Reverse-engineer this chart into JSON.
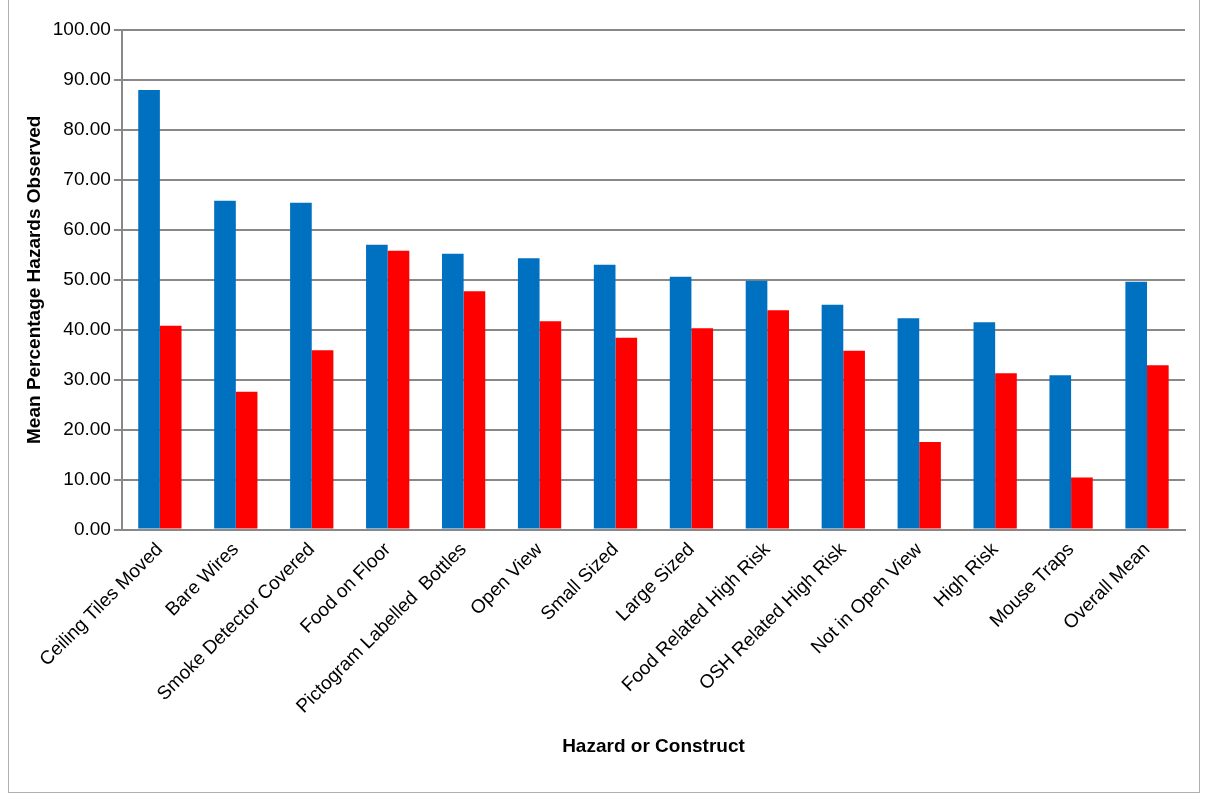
{
  "chart_data": {
    "type": "bar",
    "xlabel": "Hazard or Construct",
    "ylabel": "Mean Percentage Hazards Observed",
    "categories": [
      "Ceiling Tiles Moved",
      "Bare Wires",
      "Smoke Detector Covered",
      "Food on Floor",
      "Pictogram Labelled  Bottles",
      "Open View",
      "Small Sized",
      "Large Sized",
      "Food Related High Risk",
      "OSH Related High Risk",
      "Not in Open View",
      "High Risk",
      "Mouse Traps",
      "Overall Mean"
    ],
    "series": [
      {
        "color": "#0070c0",
        "values": [
          88.0,
          65.8,
          65.4,
          57.0,
          55.2,
          54.3,
          53.0,
          50.6,
          49.8,
          45.0,
          42.3,
          41.5,
          30.9,
          49.6
        ]
      },
      {
        "color": "#ff0000",
        "values": [
          40.8,
          27.6,
          35.9,
          55.8,
          47.7,
          41.7,
          38.4,
          40.3,
          43.9,
          35.8,
          17.5,
          31.3,
          10.4,
          32.9
        ]
      }
    ],
    "ylim": [
      0,
      100
    ],
    "yticks": [
      {
        "value": 0,
        "label": "0.00"
      },
      {
        "value": 10,
        "label": "10.00"
      },
      {
        "value": 20,
        "label": "20.00"
      },
      {
        "value": 30,
        "label": "30.00"
      },
      {
        "value": 40,
        "label": "40.00"
      },
      {
        "value": 50,
        "label": "50.00"
      },
      {
        "value": 60,
        "label": "60.00"
      },
      {
        "value": 70,
        "label": "70.00"
      },
      {
        "value": 80,
        "label": "80.00"
      },
      {
        "value": 90,
        "label": "90.00"
      },
      {
        "value": 100,
        "label": "100.00"
      }
    ],
    "grid": "y",
    "legend": false
  }
}
